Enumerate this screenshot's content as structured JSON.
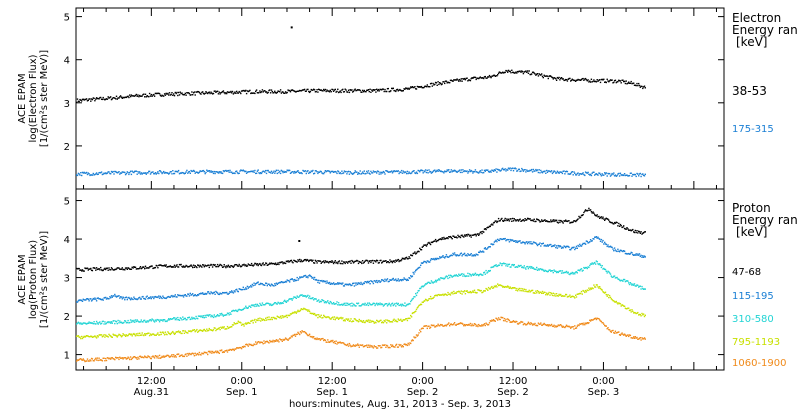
{
  "chart_data": {
    "type": "line",
    "xlabel": "hours:minutes, Aug. 31, 2013 - Sep. 3, 2013",
    "x_ticks": [
      {
        "t": 12,
        "line1": "12:00",
        "line2": "Aug.31"
      },
      {
        "t": 24,
        "line1": "0:00",
        "line2": "Sep. 1"
      },
      {
        "t": 36,
        "line1": "12:00",
        "line2": "Sep. 1"
      },
      {
        "t": 48,
        "line1": "0:00",
        "line2": "Sep. 2"
      },
      {
        "t": 60,
        "line1": "12:00",
        "line2": "Sep. 2"
      },
      {
        "t": 72,
        "line1": "0:00",
        "line2": "Sep. 3"
      }
    ],
    "xlim_hours": [
      2,
      88
    ],
    "panels": [
      {
        "id": "electron",
        "ylabel_lines": [
          "ACE EPAM",
          "log(Electron Flux)",
          "[1/(cm²s ster MeV)]"
        ],
        "ylim": [
          1,
          5.2
        ],
        "yticks": [
          2,
          3,
          4,
          5
        ],
        "legend_title": [
          "Electron",
          "Energy ran",
          "[keV]"
        ],
        "series": [
          {
            "name": "38-53",
            "color": "#000000",
            "points": [
              [
                2,
                3.05
              ],
              [
                6,
                3.1
              ],
              [
                10,
                3.16
              ],
              [
                14,
                3.2
              ],
              [
                18,
                3.22
              ],
              [
                22,
                3.24
              ],
              [
                26,
                3.26
              ],
              [
                30,
                3.26
              ],
              [
                34,
                3.28
              ],
              [
                38,
                3.28
              ],
              [
                42,
                3.28
              ],
              [
                46,
                3.32
              ],
              [
                50,
                3.45
              ],
              [
                54,
                3.55
              ],
              [
                57,
                3.6
              ],
              [
                59,
                3.75
              ],
              [
                60,
                3.72
              ],
              [
                62,
                3.7
              ],
              [
                64,
                3.62
              ],
              [
                66,
                3.55
              ],
              [
                70,
                3.52
              ],
              [
                74,
                3.5
              ],
              [
                76,
                3.44
              ],
              [
                77.5,
                3.35
              ]
            ],
            "extra_points": [
              [
                30.5,
                4.75
              ]
            ]
          },
          {
            "name": "175-315",
            "color": "#1a7fd4",
            "points": [
              [
                2,
                1.35
              ],
              [
                10,
                1.38
              ],
              [
                20,
                1.4
              ],
              [
                30,
                1.4
              ],
              [
                40,
                1.38
              ],
              [
                48,
                1.4
              ],
              [
                52,
                1.42
              ],
              [
                56,
                1.4
              ],
              [
                60,
                1.46
              ],
              [
                64,
                1.4
              ],
              [
                70,
                1.35
              ],
              [
                77.5,
                1.32
              ]
            ]
          }
        ]
      },
      {
        "id": "proton",
        "ylabel_lines": [
          "ACE EPAM",
          "log(Proton Flux)",
          "[1/(cm²s ster MeV)]"
        ],
        "ylim": [
          0.6,
          5.3
        ],
        "yticks": [
          1,
          2,
          3,
          4,
          5
        ],
        "legend_title": [
          "Proton",
          "Energy ran",
          "[keV]"
        ],
        "series": [
          {
            "name": "47-68",
            "color": "#000000",
            "points": [
              [
                2,
                3.2
              ],
              [
                10,
                3.25
              ],
              [
                14,
                3.3
              ],
              [
                22,
                3.3
              ],
              [
                28,
                3.35
              ],
              [
                32,
                3.45
              ],
              [
                34,
                3.4
              ],
              [
                38,
                3.4
              ],
              [
                44,
                3.42
              ],
              [
                46,
                3.5
              ],
              [
                48,
                3.8
              ],
              [
                50,
                4.0
              ],
              [
                52,
                4.05
              ],
              [
                55,
                4.1
              ],
              [
                56,
                4.2
              ],
              [
                58,
                4.5
              ],
              [
                62,
                4.5
              ],
              [
                66,
                4.45
              ],
              [
                68,
                4.45
              ],
              [
                70,
                4.8
              ],
              [
                71,
                4.6
              ],
              [
                73,
                4.45
              ],
              [
                76,
                4.2
              ],
              [
                77.5,
                4.15
              ]
            ],
            "extra_points": [
              [
                31.5,
                3.95
              ]
            ]
          },
          {
            "name": "115-195",
            "color": "#1a7fd4",
            "points": [
              [
                2,
                2.4
              ],
              [
                6,
                2.45
              ],
              [
                7,
                2.55
              ],
              [
                8,
                2.45
              ],
              [
                14,
                2.5
              ],
              [
                20,
                2.6
              ],
              [
                22,
                2.6
              ],
              [
                24,
                2.7
              ],
              [
                26,
                2.85
              ],
              [
                28,
                2.8
              ],
              [
                30,
                2.9
              ],
              [
                32,
                3.0
              ],
              [
                33,
                3.05
              ],
              [
                34,
                2.9
              ],
              [
                38,
                2.8
              ],
              [
                40,
                2.85
              ],
              [
                44,
                2.95
              ],
              [
                46,
                2.95
              ],
              [
                48,
                3.4
              ],
              [
                50,
                3.5
              ],
              [
                52,
                3.6
              ],
              [
                55,
                3.6
              ],
              [
                56,
                3.7
              ],
              [
                58,
                4.0
              ],
              [
                60,
                3.95
              ],
              [
                62,
                3.9
              ],
              [
                66,
                3.8
              ],
              [
                68,
                3.75
              ],
              [
                70,
                3.95
              ],
              [
                71,
                4.05
              ],
              [
                73,
                3.75
              ],
              [
                76,
                3.6
              ],
              [
                77.5,
                3.55
              ]
            ]
          },
          {
            "name": "310-580",
            "color": "#22d4d4",
            "points": [
              [
                2,
                1.8
              ],
              [
                8,
                1.85
              ],
              [
                14,
                1.9
              ],
              [
                20,
                2.0
              ],
              [
                22,
                2.05
              ],
              [
                24,
                2.2
              ],
              [
                26,
                2.3
              ],
              [
                28,
                2.3
              ],
              [
                30,
                2.4
              ],
              [
                32,
                2.55
              ],
              [
                34,
                2.4
              ],
              [
                38,
                2.3
              ],
              [
                42,
                2.3
              ],
              [
                46,
                2.3
              ],
              [
                48,
                2.8
              ],
              [
                50,
                2.95
              ],
              [
                52,
                3.05
              ],
              [
                56,
                3.1
              ],
              [
                58,
                3.35
              ],
              [
                60,
                3.3
              ],
              [
                62,
                3.25
              ],
              [
                66,
                3.15
              ],
              [
                68,
                3.1
              ],
              [
                70,
                3.3
              ],
              [
                71,
                3.4
              ],
              [
                73,
                3.05
              ],
              [
                76,
                2.8
              ],
              [
                77.5,
                2.7
              ]
            ]
          },
          {
            "name": "795-1193",
            "color": "#c8e000",
            "points": [
              [
                2,
                1.45
              ],
              [
                8,
                1.5
              ],
              [
                14,
                1.55
              ],
              [
                20,
                1.65
              ],
              [
                22,
                1.7
              ],
              [
                23.5,
                1.85
              ],
              [
                24,
                1.75
              ],
              [
                26,
                1.9
              ],
              [
                30,
                2.0
              ],
              [
                32,
                2.2
              ],
              [
                34,
                2.0
              ],
              [
                38,
                1.9
              ],
              [
                42,
                1.85
              ],
              [
                46,
                1.9
              ],
              [
                48,
                2.4
              ],
              [
                50,
                2.55
              ],
              [
                52,
                2.6
              ],
              [
                56,
                2.65
              ],
              [
                58,
                2.8
              ],
              [
                60,
                2.7
              ],
              [
                62,
                2.65
              ],
              [
                66,
                2.55
              ],
              [
                68,
                2.5
              ],
              [
                70,
                2.7
              ],
              [
                71,
                2.8
              ],
              [
                73,
                2.45
              ],
              [
                76,
                2.1
              ],
              [
                77.5,
                2.0
              ]
            ]
          },
          {
            "name": "1060-1900",
            "color": "#f08a1a",
            "points": [
              [
                2,
                0.85
              ],
              [
                8,
                0.9
              ],
              [
                14,
                0.95
              ],
              [
                20,
                1.05
              ],
              [
                22,
                1.1
              ],
              [
                24,
                1.2
              ],
              [
                26,
                1.3
              ],
              [
                30,
                1.4
              ],
              [
                32,
                1.6
              ],
              [
                34,
                1.4
              ],
              [
                38,
                1.25
              ],
              [
                42,
                1.2
              ],
              [
                46,
                1.25
              ],
              [
                48,
                1.7
              ],
              [
                50,
                1.75
              ],
              [
                52,
                1.8
              ],
              [
                56,
                1.75
              ],
              [
                58,
                1.95
              ],
              [
                60,
                1.85
              ],
              [
                62,
                1.8
              ],
              [
                66,
                1.75
              ],
              [
                68,
                1.7
              ],
              [
                70,
                1.85
              ],
              [
                71,
                1.95
              ],
              [
                73,
                1.6
              ],
              [
                76,
                1.45
              ],
              [
                77.5,
                1.4
              ]
            ]
          }
        ]
      }
    ]
  }
}
